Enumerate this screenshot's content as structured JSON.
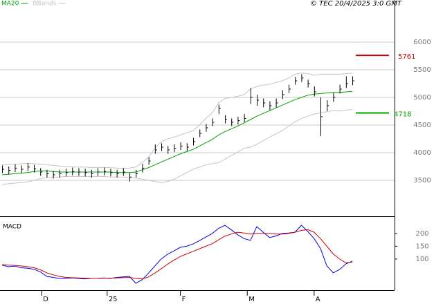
{
  "chart_data": [
    {
      "type": "ohlc",
      "source": "© TEC 20/4/2025 3:0 GMT",
      "x": [
        0,
        1,
        2,
        3,
        4,
        5,
        6,
        7,
        8,
        9,
        10,
        11,
        12,
        13,
        14,
        15,
        16,
        17,
        18,
        19,
        20,
        21,
        22,
        23,
        24,
        25,
        26,
        27,
        28,
        29,
        30,
        31,
        32,
        33,
        34,
        35,
        36,
        37,
        38,
        39,
        40,
        41,
        42,
        43,
        44,
        45,
        46,
        47,
        48,
        49,
        50,
        51,
        52,
        53,
        54,
        55
      ],
      "xlim": [
        -0.33,
        61.63
      ],
      "ylim": [
        2850,
        6762
      ],
      "yticks": [
        3500,
        4000,
        4500,
        5000,
        5500,
        6000
      ],
      "grid": true,
      "bar_color": "#000000",
      "ohlc": {
        "high": [
          3770,
          3750,
          3790,
          3770,
          3810,
          3780,
          3720,
          3690,
          3670,
          3690,
          3710,
          3730,
          3720,
          3710,
          3690,
          3720,
          3730,
          3710,
          3690,
          3720,
          3630,
          3690,
          3800,
          3920,
          4150,
          4170,
          4120,
          4150,
          4190,
          4170,
          4270,
          4420,
          4520,
          4620,
          4870,
          4680,
          4620,
          4650,
          4700,
          5170,
          5050,
          4980,
          4930,
          4980,
          5130,
          5230,
          5370,
          5420,
          5320,
          5200,
          5000,
          4950,
          5080,
          5230,
          5380,
          5380
        ],
        "low": [
          3630,
          3610,
          3650,
          3630,
          3670,
          3640,
          3580,
          3550,
          3530,
          3550,
          3570,
          3590,
          3580,
          3570,
          3550,
          3580,
          3590,
          3570,
          3550,
          3580,
          3480,
          3550,
          3640,
          3780,
          3980,
          4030,
          3980,
          4010,
          4050,
          4030,
          4130,
          4280,
          4380,
          4480,
          4700,
          4530,
          4480,
          4510,
          4550,
          4880,
          4850,
          4820,
          4770,
          4820,
          4970,
          5080,
          5230,
          5280,
          5180,
          5020,
          4300,
          4750,
          4920,
          5070,
          5170,
          5220
        ],
        "close": [
          3700,
          3680,
          3720,
          3700,
          3740,
          3710,
          3650,
          3620,
          3600,
          3620,
          3640,
          3660,
          3650,
          3640,
          3620,
          3650,
          3660,
          3640,
          3620,
          3650,
          3560,
          3620,
          3720,
          3850,
          4050,
          4100,
          4050,
          4080,
          4120,
          4100,
          4200,
          4350,
          4450,
          4550,
          4800,
          4600,
          4550,
          4580,
          4620,
          5000,
          4950,
          4900,
          4850,
          4900,
          5050,
          5150,
          5300,
          5350,
          5250,
          5100,
          4650,
          4850,
          5000,
          5150,
          5250,
          5300
        ]
      },
      "series": [
        {
          "name": "MA20",
          "color": "#00a000",
          "values": [
            3600,
            3610,
            3620,
            3630,
            3640,
            3660,
            3670,
            3670,
            3660,
            3650,
            3650,
            3650,
            3650,
            3650,
            3650,
            3650,
            3650,
            3650,
            3640,
            3640,
            3640,
            3650,
            3690,
            3730,
            3780,
            3830,
            3880,
            3930,
            3980,
            4020,
            4060,
            4120,
            4180,
            4240,
            4320,
            4380,
            4430,
            4480,
            4540,
            4600,
            4660,
            4710,
            4760,
            4810,
            4860,
            4910,
            4960,
            5000,
            5040,
            5060,
            5070,
            5080,
            5090,
            5090,
            5100,
            5110
          ]
        },
        {
          "name": "BBands",
          "color": "#c4c4c4",
          "upper": [
            3780,
            3780,
            3790,
            3800,
            3810,
            3800,
            3790,
            3780,
            3770,
            3760,
            3750,
            3740,
            3740,
            3740,
            3730,
            3730,
            3730,
            3730,
            3720,
            3720,
            3720,
            3740,
            3820,
            3920,
            4080,
            4200,
            4250,
            4280,
            4320,
            4360,
            4400,
            4500,
            4620,
            4720,
            4900,
            4980,
            5000,
            5020,
            5050,
            5150,
            5200,
            5220,
            5240,
            5270,
            5300,
            5350,
            5420,
            5440,
            5430,
            5400,
            5420,
            5420,
            5420,
            5420,
            5430,
            5440
          ],
          "lower": [
            3420,
            3440,
            3450,
            3460,
            3470,
            3500,
            3530,
            3550,
            3560,
            3560,
            3570,
            3570,
            3570,
            3570,
            3570,
            3570,
            3570,
            3560,
            3560,
            3560,
            3550,
            3540,
            3520,
            3500,
            3480,
            3460,
            3480,
            3520,
            3580,
            3640,
            3700,
            3740,
            3780,
            3800,
            3820,
            3880,
            3950,
            4010,
            4080,
            4100,
            4150,
            4220,
            4280,
            4340,
            4400,
            4480,
            4560,
            4620,
            4660,
            4700,
            4720,
            4740,
            4760,
            4760,
            4770,
            4780
          ]
        }
      ],
      "levels": [
        {
          "value": 5761,
          "color": "#cc0000"
        },
        {
          "value": 4718,
          "color": "#00a000"
        }
      ]
    },
    {
      "type": "line",
      "title": "MACD",
      "xlim": [
        -0.33,
        61.63
      ],
      "xticks": [
        {
          "value": 6.2,
          "label": "D"
        },
        {
          "value": 16.5,
          "label": "25"
        },
        {
          "value": 28,
          "label": "F"
        },
        {
          "value": 38.5,
          "label": "M"
        },
        {
          "value": 49,
          "label": "A"
        }
      ],
      "ylim": [
        -22,
        262
      ],
      "yticks": [
        100,
        150,
        200
      ],
      "series": [
        {
          "color": "#0000dd",
          "values": [
            76,
            70,
            72,
            66,
            64,
            60,
            50,
            32,
            28,
            24,
            24,
            26,
            24,
            22,
            24,
            24,
            26,
            24,
            28,
            30,
            32,
            5,
            19,
            45,
            73,
            100,
            119,
            132,
            146,
            150,
            159,
            172,
            186,
            200,
            220,
            232,
            214,
            195,
            180,
            173,
            227,
            205,
            184,
            190,
            200,
            202,
            205,
            232,
            208,
            180,
            141,
            73,
            46,
            59,
            81,
            92
          ]
        },
        {
          "color": "#cc0000",
          "values": [
            78,
            76,
            75,
            73,
            70,
            66,
            58,
            46,
            38,
            32,
            28,
            27,
            26,
            25,
            24,
            24,
            25,
            25,
            26,
            27,
            28,
            24,
            22,
            30,
            45,
            62,
            80,
            96,
            110,
            120,
            130,
            140,
            150,
            160,
            175,
            190,
            198,
            205,
            202,
            198,
            200,
            200,
            200,
            198,
            198,
            200,
            205,
            212,
            215,
            205,
            180,
            150,
            120,
            100,
            85,
            88
          ]
        }
      ]
    }
  ]
}
